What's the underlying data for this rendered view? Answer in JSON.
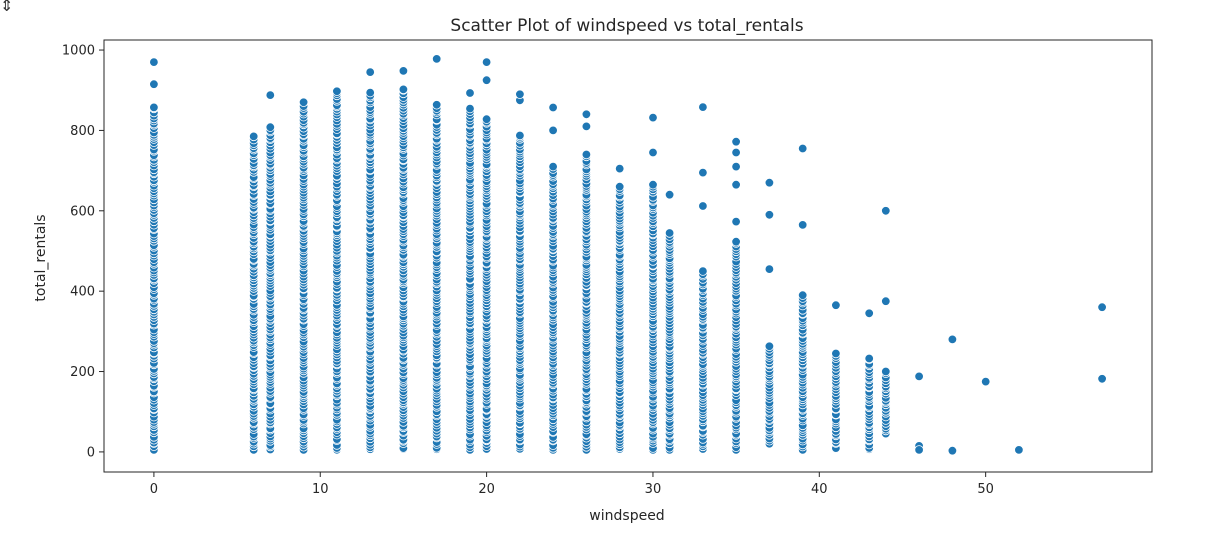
{
  "chart_data": {
    "type": "scatter",
    "title": "Scatter Plot of windspeed vs total_rentals",
    "xlabel": "windspeed",
    "ylabel": "total_rentals",
    "xlim": [
      -3,
      60
    ],
    "ylim": [
      -50,
      1025
    ],
    "xticks": [
      0,
      10,
      20,
      30,
      40,
      50
    ],
    "yticks": [
      0,
      200,
      400,
      600,
      800,
      1000
    ],
    "grid": false,
    "marker_color": "#1f77b4",
    "columns": [
      {
        "x": 0,
        "min": 5,
        "max": 860,
        "outliers": [
          915,
          970
        ]
      },
      {
        "x": 6,
        "min": 5,
        "max": 785,
        "outliers": []
      },
      {
        "x": 7,
        "min": 5,
        "max": 810,
        "outliers": [
          888
        ]
      },
      {
        "x": 9,
        "min": 5,
        "max": 870,
        "outliers": []
      },
      {
        "x": 11,
        "min": 5,
        "max": 900,
        "outliers": []
      },
      {
        "x": 13,
        "min": 5,
        "max": 895,
        "outliers": [
          945
        ]
      },
      {
        "x": 15,
        "min": 5,
        "max": 905,
        "outliers": [
          948
        ]
      },
      {
        "x": 17,
        "min": 5,
        "max": 865,
        "outliers": [
          978
        ]
      },
      {
        "x": 19,
        "min": 5,
        "max": 855,
        "outliers": [
          893
        ]
      },
      {
        "x": 20,
        "min": 5,
        "max": 830,
        "outliers": [
          925,
          970
        ]
      },
      {
        "x": 22,
        "min": 5,
        "max": 790,
        "outliers": [
          875,
          890
        ]
      },
      {
        "x": 24,
        "min": 5,
        "max": 710,
        "outliers": [
          800,
          857
        ]
      },
      {
        "x": 26,
        "min": 5,
        "max": 740,
        "outliers": [
          810,
          840
        ]
      },
      {
        "x": 28,
        "min": 5,
        "max": 660,
        "outliers": [
          705
        ]
      },
      {
        "x": 30,
        "min": 5,
        "max": 665,
        "outliers": [
          745,
          832
        ]
      },
      {
        "x": 31,
        "min": 5,
        "max": 545,
        "outliers": [
          640
        ]
      },
      {
        "x": 33,
        "min": 5,
        "max": 450,
        "outliers": [
          612,
          695,
          858
        ]
      },
      {
        "x": 35,
        "min": 5,
        "max": 525,
        "outliers": [
          573,
          665,
          710,
          745,
          772
        ]
      },
      {
        "x": 37,
        "min": 20,
        "max": 265,
        "outliers": [
          455,
          590,
          670
        ]
      },
      {
        "x": 39,
        "min": 5,
        "max": 390,
        "outliers": [
          565,
          755
        ]
      },
      {
        "x": 41,
        "min": 5,
        "max": 245,
        "outliers": [
          365
        ]
      },
      {
        "x": 43,
        "min": 5,
        "max": 235,
        "outliers": [
          345
        ]
      },
      {
        "x": 44,
        "min": 45,
        "max": 200,
        "outliers": [
          375,
          600
        ]
      }
    ],
    "points": [
      {
        "x": 46,
        "y": 188
      },
      {
        "x": 46,
        "y": 15
      },
      {
        "x": 46,
        "y": 5
      },
      {
        "x": 48,
        "y": 280
      },
      {
        "x": 48,
        "y": 3
      },
      {
        "x": 50,
        "y": 175
      },
      {
        "x": 52,
        "y": 5
      },
      {
        "x": 57,
        "y": 360
      },
      {
        "x": 57,
        "y": 182
      }
    ]
  }
}
